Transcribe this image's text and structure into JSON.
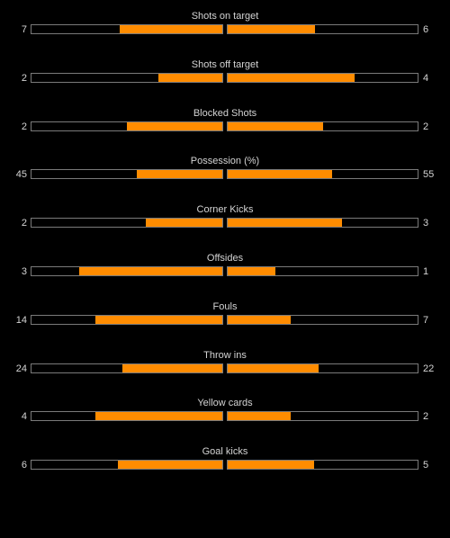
{
  "colors": {
    "background": "#000000",
    "fill": "#ff8c00",
    "bar_border": "#7a7a7a",
    "text": "#d4d4d4"
  },
  "stats": [
    {
      "label": "Shots on target",
      "home": "7",
      "away": "6",
      "home_share": 0.538,
      "away_share": 0.462
    },
    {
      "label": "Shots off target",
      "home": "2",
      "away": "4",
      "home_share": 0.333,
      "away_share": 0.667
    },
    {
      "label": "Blocked Shots",
      "home": "2",
      "away": "2",
      "home_share": 0.5,
      "away_share": 0.5
    },
    {
      "label": "Possession (%)",
      "home": "45",
      "away": "55",
      "home_share": 0.45,
      "away_share": 0.55
    },
    {
      "label": "Corner Kicks",
      "home": "2",
      "away": "3",
      "home_share": 0.4,
      "away_share": 0.6
    },
    {
      "label": "Offsides",
      "home": "3",
      "away": "1",
      "home_share": 0.75,
      "away_share": 0.25
    },
    {
      "label": "Fouls",
      "home": "14",
      "away": "7",
      "home_share": 0.667,
      "away_share": 0.333
    },
    {
      "label": "Throw ins",
      "home": "24",
      "away": "22",
      "home_share": 0.522,
      "away_share": 0.478
    },
    {
      "label": "Yellow cards",
      "home": "4",
      "away": "2",
      "home_share": 0.667,
      "away_share": 0.333
    },
    {
      "label": "Goal kicks",
      "home": "6",
      "away": "5",
      "home_share": 0.545,
      "away_share": 0.455
    }
  ]
}
